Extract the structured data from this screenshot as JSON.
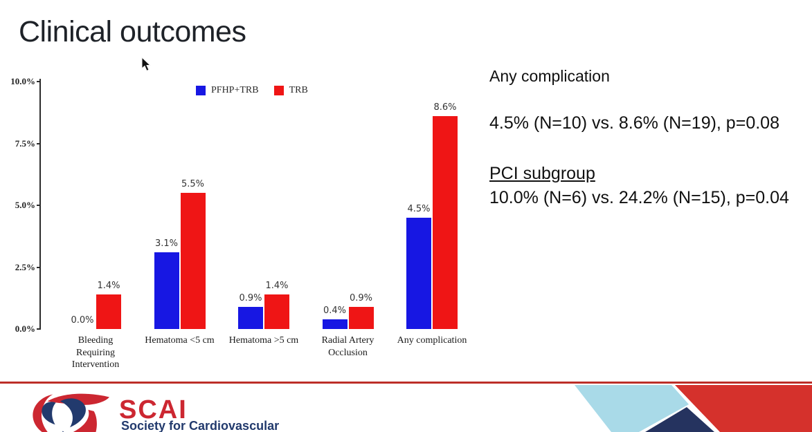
{
  "title": "Clinical outcomes",
  "chart_data": {
    "type": "bar",
    "title": "",
    "xlabel": "",
    "ylabel": "",
    "categories": [
      "Bleeding\nRequiring\nIntervention",
      "Hematoma <5 cm",
      "Hematoma >5 cm",
      "Radial Artery\nOcclusion",
      "Any complication"
    ],
    "series": [
      {
        "name": "PFHP+TRB",
        "color": "#1717e3",
        "values": [
          0.0,
          3.1,
          0.9,
          0.4,
          4.5
        ],
        "value_labels": [
          "0.0%",
          "3.1%",
          "0.9%",
          "0.4%",
          "4.5%"
        ]
      },
      {
        "name": "TRB",
        "color": "#ef1515",
        "values": [
          1.4,
          5.5,
          1.4,
          0.9,
          8.6
        ],
        "value_labels": [
          "1.4%",
          "5.5%",
          "1.4%",
          "0.9%",
          "8.6%"
        ]
      }
    ],
    "y_ticks": [
      {
        "value": 10.0,
        "label": "10.0%"
      },
      {
        "value": 7.5,
        "label": "7.5%"
      },
      {
        "value": 5.0,
        "label": "5.0%"
      },
      {
        "value": 2.5,
        "label": "2.5%"
      },
      {
        "value": 0.0,
        "label": "0.0%"
      }
    ],
    "ylim": [
      0,
      10
    ],
    "grid": false,
    "legend_position": "top"
  },
  "annotation": {
    "heading": "Any complication",
    "stat_line": "4.5% (N=10) vs. 8.6% (N=19), p=0.08",
    "subheading": "PCI subgroup",
    "subgroup_stat_line": "10.0% (N=6) vs. 24.2% (N=15), p=0.04"
  },
  "footer": {
    "logo_text": "SCAI",
    "logo_subtext": "Society for Cardiovascular",
    "colors": {
      "rule_red": "#bc2e28",
      "logo_red": "#cc2731",
      "logo_navy": "#223a6d",
      "shape_light_blue": "#a9dae8",
      "shape_navy": "#25335f",
      "shape_red": "#d5312c"
    }
  }
}
